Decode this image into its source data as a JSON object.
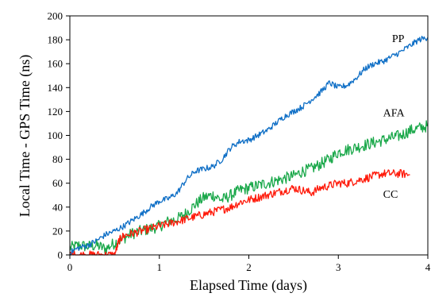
{
  "chart_data": {
    "type": "line",
    "title": "",
    "xlabel": "Elapsed Time (days)",
    "ylabel": "Local Time - GPS Time (ns)",
    "xlim": [
      0,
      4
    ],
    "ylim": [
      0,
      200
    ],
    "x_ticks": [
      "0",
      "1",
      "2",
      "3",
      "4"
    ],
    "y_ticks": [
      "0",
      "20",
      "40",
      "60",
      "80",
      "100",
      "120",
      "140",
      "160",
      "180",
      "200"
    ],
    "grid": false,
    "legend": "none (series labelled directly on plot)",
    "series": [
      {
        "name": "PP",
        "color": "#0f6fc6",
        "x": [
          0.0,
          0.1,
          0.2,
          0.3,
          0.4,
          0.5,
          0.6,
          0.7,
          0.8,
          0.9,
          1.0,
          1.1,
          1.2,
          1.3,
          1.4,
          1.5,
          1.6,
          1.7,
          1.8,
          1.9,
          2.0,
          2.1,
          2.2,
          2.3,
          2.4,
          2.5,
          2.6,
          2.7,
          2.8,
          2.9,
          3.0,
          3.1,
          3.2,
          3.3,
          3.4,
          3.5,
          3.6,
          3.7,
          3.8,
          3.9,
          4.0
        ],
        "y": [
          2,
          6,
          8,
          12,
          17,
          20,
          24,
          29,
          34,
          40,
          45,
          47,
          52,
          63,
          70,
          72,
          74,
          80,
          90,
          95,
          96,
          100,
          104,
          110,
          116,
          120,
          124,
          130,
          136,
          144,
          140,
          142,
          148,
          156,
          160,
          162,
          166,
          170,
          175,
          180,
          182
        ]
      },
      {
        "name": "AFA",
        "color": "#1aa84a",
        "x": [
          0.0,
          0.1,
          0.2,
          0.3,
          0.4,
          0.5,
          0.6,
          0.7,
          0.8,
          0.9,
          1.0,
          1.1,
          1.2,
          1.3,
          1.4,
          1.5,
          1.6,
          1.7,
          1.8,
          1.9,
          2.0,
          2.1,
          2.2,
          2.3,
          2.4,
          2.5,
          2.6,
          2.7,
          2.8,
          2.9,
          3.0,
          3.1,
          3.2,
          3.3,
          3.4,
          3.5,
          3.6,
          3.7,
          3.8,
          3.9,
          4.0
        ],
        "y": [
          6,
          8,
          7,
          8,
          5,
          10,
          14,
          18,
          20,
          22,
          24,
          28,
          30,
          35,
          42,
          48,
          50,
          46,
          50,
          54,
          56,
          58,
          60,
          62,
          64,
          66,
          70,
          72,
          76,
          80,
          86,
          88,
          90,
          92,
          94,
          96,
          98,
          100,
          104,
          106,
          108
        ]
      },
      {
        "name": "CC",
        "color": "#ff1a0a",
        "x": [
          0.0,
          0.1,
          0.2,
          0.3,
          0.4,
          0.5,
          0.55,
          0.6,
          0.7,
          0.8,
          0.9,
          1.0,
          1.1,
          1.2,
          1.3,
          1.4,
          1.5,
          1.6,
          1.7,
          1.8,
          1.9,
          2.0,
          2.1,
          2.2,
          2.3,
          2.4,
          2.5,
          2.6,
          2.7,
          2.8,
          2.9,
          3.0,
          3.1,
          3.2,
          3.3,
          3.4,
          3.5,
          3.6,
          3.7,
          3.8
        ],
        "y": [
          0,
          0,
          0,
          0,
          0,
          0,
          12,
          16,
          18,
          20,
          22,
          24,
          26,
          28,
          30,
          32,
          34,
          36,
          38,
          40,
          44,
          46,
          48,
          50,
          52,
          54,
          56,
          54,
          52,
          56,
          58,
          60,
          60,
          62,
          64,
          66,
          68,
          68,
          68,
          67
        ]
      }
    ],
    "annotations": [
      {
        "text": "PP",
        "x": 3.6,
        "y": 178
      },
      {
        "text": "AFA",
        "x": 3.5,
        "y": 116
      },
      {
        "text": "CC",
        "x": 3.5,
        "y": 48
      }
    ]
  }
}
